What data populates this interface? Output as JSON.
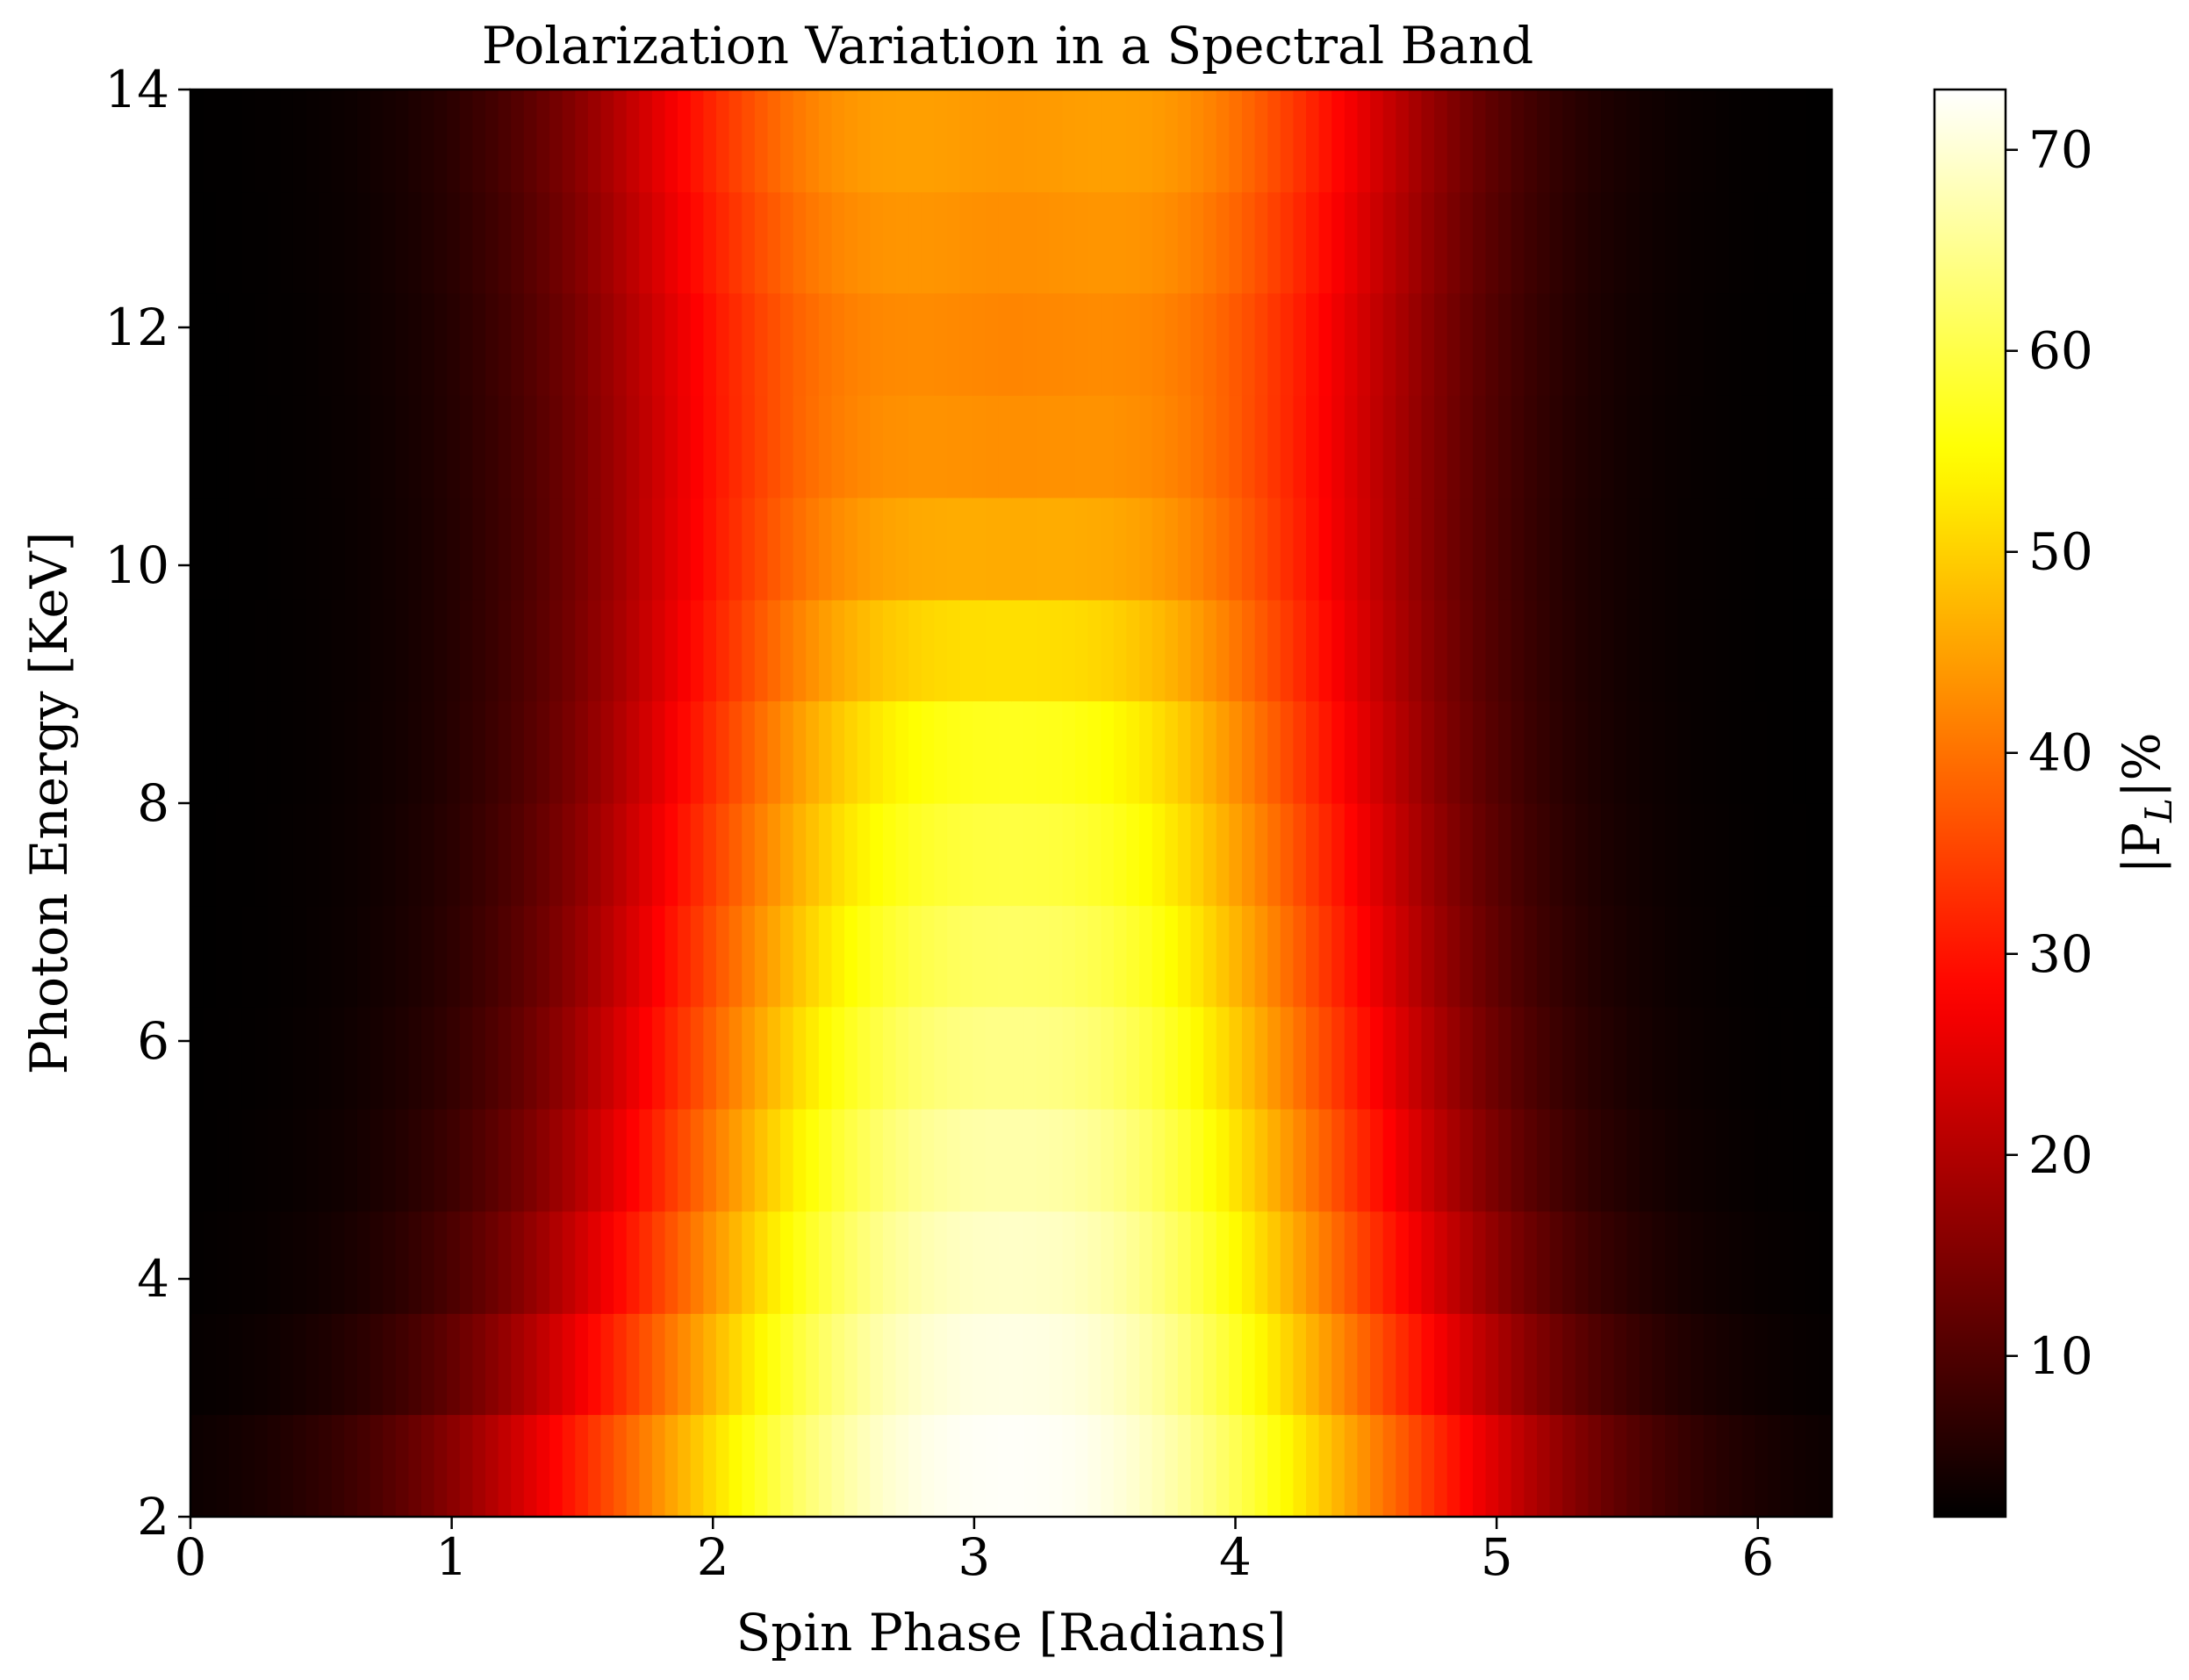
{
  "chart_data": {
    "type": "heatmap",
    "title": "Polarization Variation in a Spectral Band",
    "xlabel": "Spin Phase [Radians]",
    "ylabel": "Photon Energy [KeV]",
    "xlim": [
      0,
      6.283
    ],
    "ylim": [
      2,
      14
    ],
    "x_ticks": [
      0,
      1,
      2,
      3,
      4,
      5,
      6
    ],
    "y_ticks": [
      2,
      4,
      6,
      8,
      10,
      12,
      14
    ],
    "colormap": "hot",
    "colorbar": {
      "label_base": "|P",
      "label_sub": "L",
      "label_tail": "|%",
      "range": [
        2,
        73
      ],
      "ticks": [
        10,
        20,
        30,
        40,
        50,
        60,
        70
      ]
    },
    "energy_bins_kev": [
      2.0,
      2.86,
      3.71,
      4.57,
      5.43,
      6.29,
      7.14,
      8.0,
      8.86,
      9.71,
      10.57,
      11.43,
      12.29,
      13.14,
      14.0
    ],
    "phase_bins": 128,
    "band_peak_polarization_pct": [
      72.5,
      71,
      69,
      67,
      64.5,
      62,
      59.5,
      57,
      54.5,
      53,
      52,
      52,
      53.5,
      55
    ],
    "band_phase_center_dip_pct": [
      0,
      0,
      0,
      0,
      0,
      0,
      0,
      0,
      3,
      7,
      9,
      10,
      10.5,
      11
    ],
    "band_profile_width_rad": [
      1.75,
      1.63,
      1.55,
      1.5,
      1.47,
      1.45,
      1.44,
      1.43,
      1.43,
      1.43,
      1.44,
      1.45,
      1.46,
      1.47
    ],
    "phase_center_rad": 3.14,
    "min_polarization_pct": 2
  }
}
